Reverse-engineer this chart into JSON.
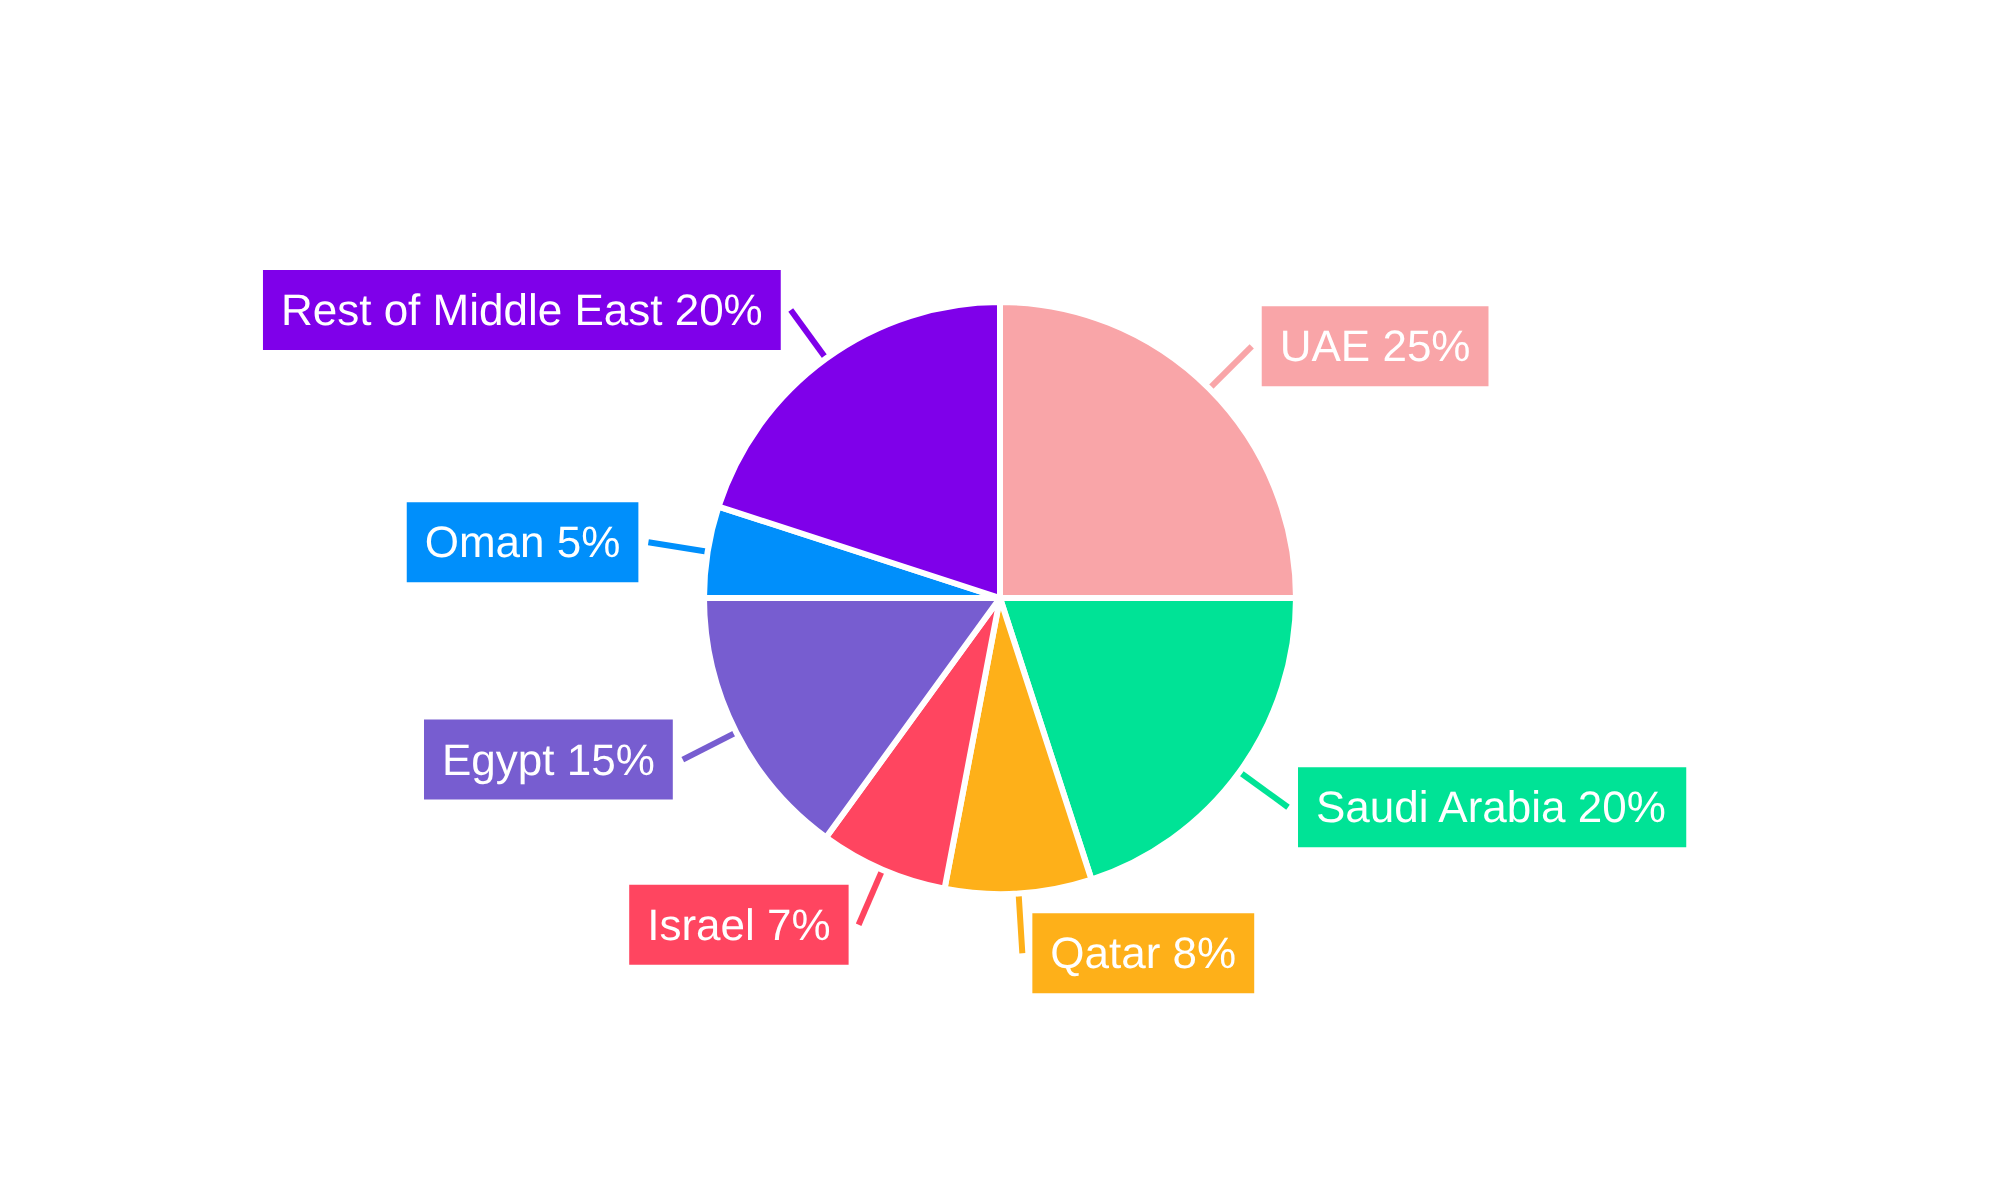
{
  "chart_data": {
    "type": "pie",
    "categories": [
      "UAE",
      "Saudi Arabia",
      "Qatar",
      "Israel",
      "Egypt",
      "Oman",
      "Rest of Middle East"
    ],
    "values": [
      25,
      20,
      8,
      7,
      15,
      5,
      20
    ],
    "value_labels": [
      "25%",
      "20%",
      "8%",
      "7%",
      "15%",
      "5%",
      "20%"
    ],
    "colors": [
      "#f9a5a8",
      "#00e396",
      "#feb019",
      "#ff4560",
      "#775dd0",
      "#008ffb",
      "#7f00ea"
    ],
    "legend": false
  }
}
